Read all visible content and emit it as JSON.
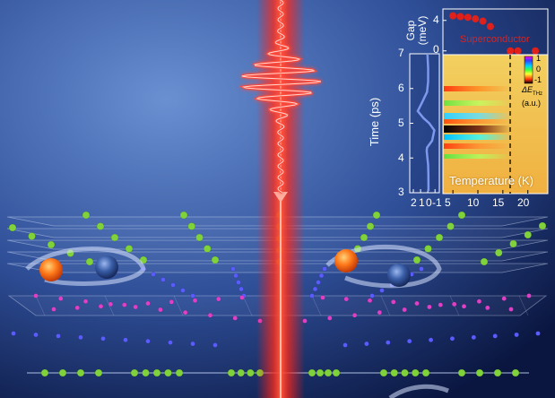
{
  "colors": {
    "background_light": "#5f86c9",
    "background_dark": "#0a1640",
    "laser_red": "#ff2a1a",
    "pulse_red": "#ff3a2a",
    "green_atom": "#7fd23a",
    "magenta_atom": "#e040c8",
    "blue_atom": "#5a5cff",
    "orange_electron": "#ff7a1a",
    "blue_electron": "#3a5ea8",
    "gap_marker": "#e0201a",
    "waveform": "#6f8fe0"
  },
  "inset": {
    "waveform_panel": {
      "ylabel": "Time (ps)",
      "y_ticks": [
        "3",
        "4",
        "5",
        "6",
        "7"
      ],
      "x_ticks": [
        "2",
        "1",
        "0",
        "-1"
      ]
    },
    "gap_panel": {
      "ylabel_line1": "Gap",
      "ylabel_line2": "(meV)",
      "y_ticks": [
        "0",
        "4"
      ],
      "annotation": "Superconductor"
    },
    "heatmap_panel": {
      "xlabel": "Temperature (K)",
      "x_ticks": [
        "5",
        "10",
        "15",
        "20"
      ],
      "colorbar_ticks": [
        "1",
        "0",
        "-1"
      ],
      "colorbar_label_delta": "ΔE",
      "colorbar_label_sub": "THz",
      "colorbar_unit": "(a.u.)"
    }
  },
  "chart_data": [
    {
      "type": "scatter",
      "x": [
        5,
        6.5,
        8,
        9.5,
        11,
        12.5,
        16.5,
        18,
        21.5
      ],
      "y": [
        4.6,
        4.5,
        4.4,
        4.2,
        3.9,
        3.2,
        0,
        0,
        0
      ],
      "xlim": [
        3,
        24
      ],
      "ylim": [
        -0.5,
        5.5
      ],
      "ylabel": "Gap (meV)",
      "annotation": "Superconductor"
    },
    {
      "type": "line",
      "x": [
        -0.1,
        -0.08,
        -0.05,
        0.05,
        0.15,
        0.1,
        -0.6,
        -0.9,
        -0.2,
        0.6,
        1.4,
        0.8,
        0.1,
        -0.05,
        -0.05,
        0.05
      ],
      "y": [
        3.05,
        3.5,
        3.8,
        4.0,
        4.2,
        4.3,
        4.5,
        4.8,
        5.0,
        5.15,
        5.35,
        5.6,
        5.9,
        6.2,
        6.6,
        7.0
      ],
      "xlim": [
        2.5,
        -1.6
      ],
      "ylim": [
        3,
        7
      ],
      "ylabel": "Time (ps)"
    },
    {
      "type": "heatmap",
      "xlabel": "Temperature (K)",
      "xlim": [
        3,
        24
      ],
      "ylim": [
        3,
        7
      ],
      "vertical_marker_x": 16.7,
      "colorbar_range": [
        -1,
        1
      ]
    }
  ]
}
